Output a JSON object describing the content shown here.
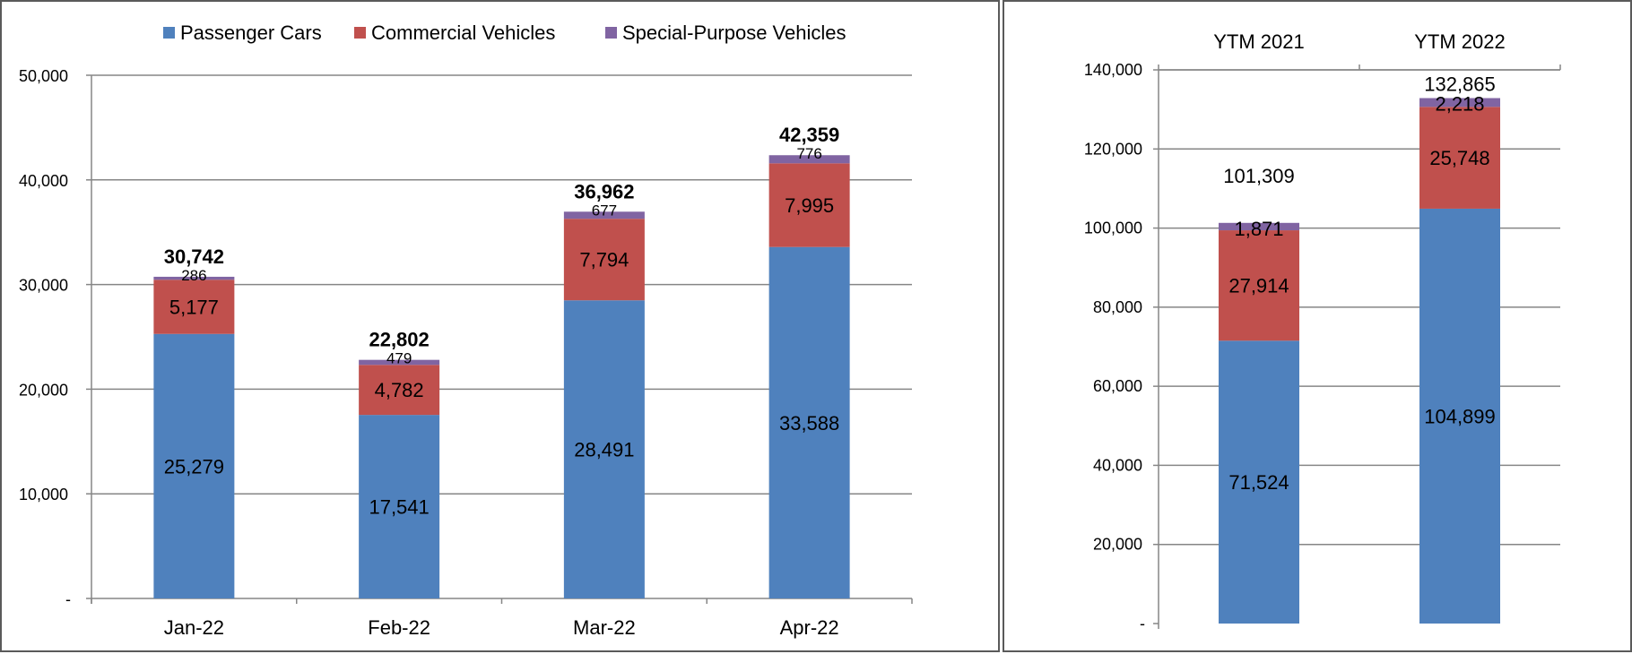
{
  "colors": {
    "passenger": "#4f81bd",
    "commercial": "#c0504d",
    "special": "#8064a2",
    "grid": "#868686",
    "axis": "#868686"
  },
  "legend": {
    "items": [
      "Passenger Cars",
      "Commercial Vehicles",
      "Special-Purpose Vehicles"
    ]
  },
  "chart_data": [
    {
      "type": "bar",
      "stacked": true,
      "categories": [
        "Jan-22",
        "Feb-22",
        "Mar-22",
        "Apr-22"
      ],
      "series": [
        {
          "name": "Passenger Cars",
          "values": [
            25279,
            17541,
            28491,
            33588
          ],
          "labels": [
            "25,279",
            "17,541",
            "28,491",
            "33,588"
          ]
        },
        {
          "name": "Commercial Vehicles",
          "values": [
            5177,
            4782,
            7794,
            7995
          ],
          "labels": [
            "5,177",
            "4,782",
            "7,794",
            "7,995"
          ]
        },
        {
          "name": "Special-Purpose Vehicles",
          "values": [
            286,
            479,
            677,
            776
          ],
          "labels": [
            "286",
            "479",
            "677",
            "776"
          ]
        }
      ],
      "totals": [
        30742,
        22802,
        36962,
        42359
      ],
      "total_labels": [
        "30,742",
        "22,802",
        "36,962",
        "42,359"
      ],
      "ylim": [
        0,
        50000
      ],
      "yticks": [
        0,
        10000,
        20000,
        30000,
        40000,
        50000
      ],
      "ytick_labels": [
        "-",
        "10,000",
        "20,000",
        "30,000",
        "40,000",
        "50,000"
      ],
      "grid": true,
      "legend_position": "top"
    },
    {
      "type": "bar",
      "stacked": true,
      "categories": [
        "YTM 2021",
        "YTM 2022"
      ],
      "series": [
        {
          "name": "Passenger Cars",
          "values": [
            71524,
            104899
          ],
          "labels": [
            "71,524",
            "104,899"
          ]
        },
        {
          "name": "Commercial Vehicles",
          "values": [
            27914,
            25748
          ],
          "labels": [
            "27,914",
            "25,748"
          ]
        },
        {
          "name": "Special-Purpose Vehicles",
          "values": [
            1871,
            2218
          ],
          "labels": [
            "1,871",
            "2,218"
          ]
        }
      ],
      "totals": [
        101309,
        132865
      ],
      "total_labels": [
        "101,309",
        "132,865"
      ],
      "ylim": [
        0,
        140000
      ],
      "yticks": [
        0,
        20000,
        40000,
        60000,
        80000,
        100000,
        120000,
        140000
      ],
      "ytick_labels": [
        "-",
        "20,000",
        "40,000",
        "60,000",
        "80,000",
        "100,000",
        "120,000",
        "140,000"
      ],
      "grid": true,
      "category_axis_position": "top"
    }
  ]
}
